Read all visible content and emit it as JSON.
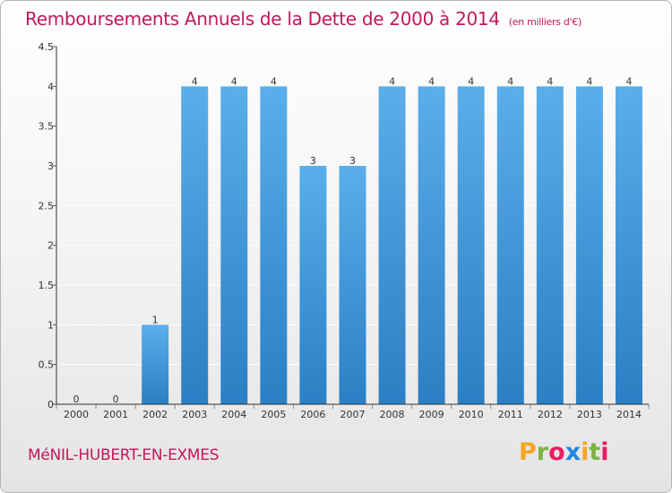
{
  "header": {
    "title": "Remboursements Annuels de la Dette de 2000 à 2014",
    "unit": "(en milliers d'€)"
  },
  "footer": {
    "commune": "MéNIL-HUBERT-EN-EXMES",
    "logo": {
      "letters": [
        "P",
        "r",
        "o",
        "x",
        "i",
        "t",
        "i"
      ],
      "colors": [
        "#f5a623",
        "#7cb342",
        "#e91e63",
        "#1e88e5",
        "#f5a623",
        "#7cb342",
        "#e91e63"
      ]
    }
  },
  "colors": {
    "title": "#c2185b",
    "bar_top": "#5aaeea",
    "bar_bottom": "#2b7fc4",
    "grid": "#ffffff"
  },
  "chart_data": {
    "type": "bar",
    "title": "Remboursements Annuels de la Dette de 2000 à 2014",
    "categories": [
      "2000",
      "2001",
      "2002",
      "2003",
      "2004",
      "2005",
      "2006",
      "2007",
      "2008",
      "2009",
      "2010",
      "2011",
      "2012",
      "2013",
      "2014"
    ],
    "values": [
      0,
      0,
      1,
      4,
      4,
      4,
      3,
      3,
      4,
      4,
      4,
      4,
      4,
      4,
      4
    ],
    "labels": [
      "0",
      "0",
      "1",
      "4",
      "4",
      "4",
      "3",
      "3",
      "4",
      "4",
      "4",
      "4",
      "4",
      "4",
      "4"
    ],
    "ylim": [
      0,
      4.5
    ],
    "yticks": [
      "0",
      "0.5",
      "1",
      "1.5",
      "2",
      "2.5",
      "3",
      "3.5",
      "4",
      "4.5"
    ],
    "ytick_values": [
      0,
      0.5,
      1,
      1.5,
      2,
      2.5,
      3,
      3.5,
      4,
      4.5
    ],
    "grid": true
  }
}
